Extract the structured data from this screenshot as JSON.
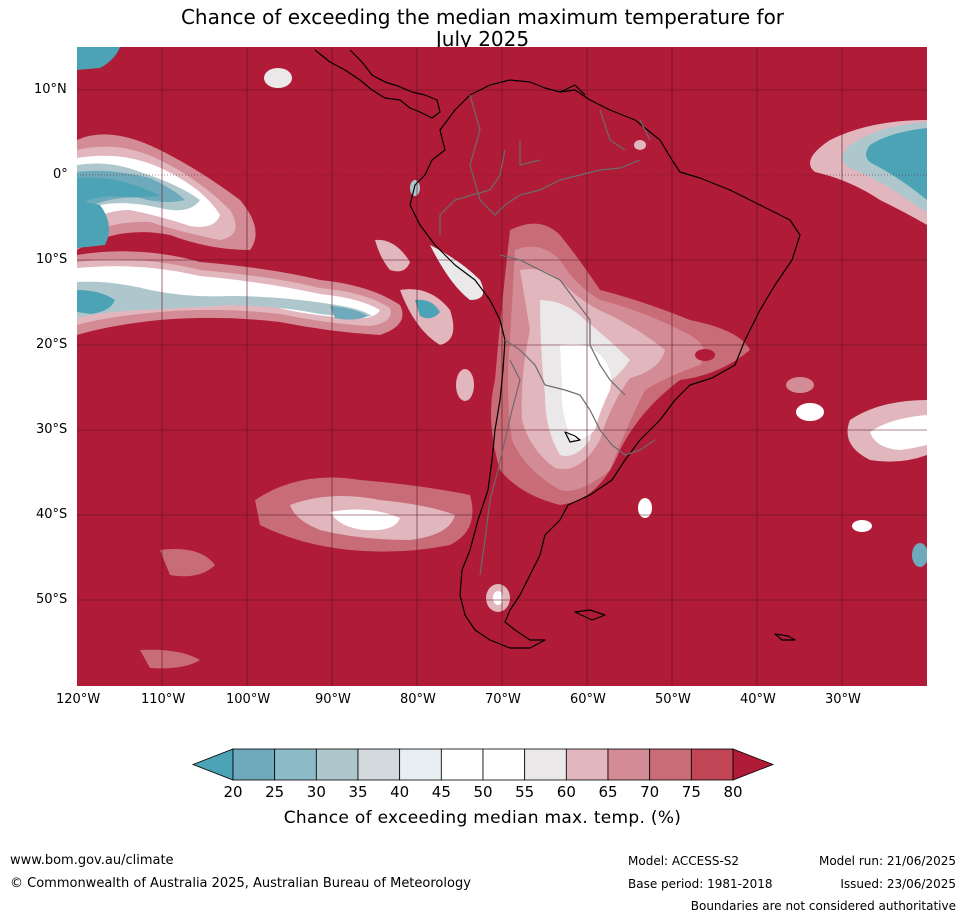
{
  "title_line1": "Chance of exceeding the median maximum temperature for",
  "title_line2": "July 2025",
  "lat_labels": [
    "10°N",
    "0°",
    "10°S",
    "20°S",
    "30°S",
    "40°S",
    "50°S"
  ],
  "lon_labels": [
    "120°W",
    "110°W",
    "100°W",
    "90°W",
    "80°W",
    "70°W",
    "60°W",
    "50°W",
    "40°W",
    "30°W"
  ],
  "colorbar": {
    "ticks": [
      "20",
      "25",
      "30",
      "35",
      "40",
      "45",
      "50",
      "55",
      "60",
      "65",
      "70",
      "75",
      "80"
    ],
    "colors": [
      "#4ba3b5",
      "#6eaabb",
      "#8cbac7",
      "#adc7cc",
      "#d3d9dc",
      "#e8eff2",
      "#ffffff",
      "#ffffff",
      "#ebe8e9",
      "#e1b6bd",
      "#d38c96",
      "#c86c78",
      "#c04656",
      "#b01c37"
    ],
    "title": "Chance of exceeding median max. temp. (%)"
  },
  "footer": {
    "website": "www.bom.gov.au/climate",
    "copyright": "© Commonwealth of Australia 2025, Australian Bureau of Meteorology",
    "model": "Model: ACCESS-S2",
    "base_period": "Base period: 1981-2018",
    "model_run": "Model run: 21/06/2025",
    "issued": "Issued: 23/06/2025",
    "disclaimer": "Boundaries are not considered authoritative"
  }
}
